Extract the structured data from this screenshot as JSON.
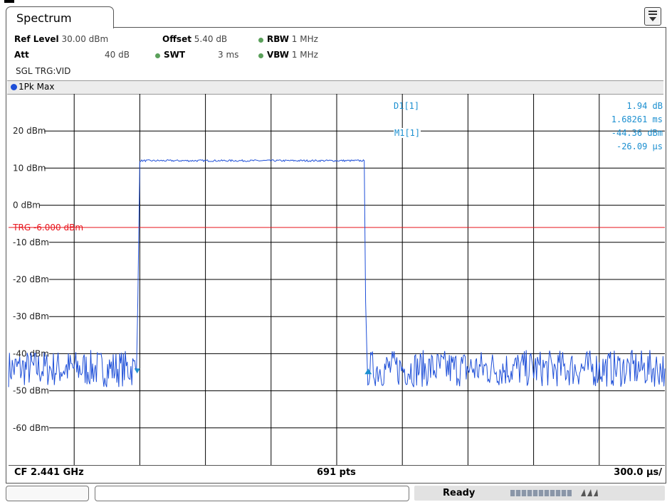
{
  "window": {
    "tab_title": "Spectrum"
  },
  "settings": {
    "ref_level_label": "Ref Level",
    "ref_level_value": "30.00 dBm",
    "offset_label": "Offset",
    "offset_value": "5.40 dB",
    "rbw_label": "RBW",
    "rbw_value": "1 MHz",
    "att_label": "Att",
    "att_value": "40 dB",
    "swt_label": "SWT",
    "swt_value": "3 ms",
    "vbw_label": "VBW",
    "vbw_value": "1 MHz",
    "mode": "SGL TRG:VID"
  },
  "trace": {
    "label": "1Pk Max",
    "color": "#1e4fd8"
  },
  "markers": {
    "d1_label": "D1[1]",
    "d1_level": "1.94 dB",
    "d1_time": "1.68261 ms",
    "m1_label": "M1[1]",
    "m1_level": "-44.36 dBm",
    "m1_time": "-26.09 µs",
    "color": "#1b8fd0"
  },
  "footer": {
    "center_freq": "CF 2.441 GHz",
    "points": "691 pts",
    "time_per_div": "300.0 µs/"
  },
  "status": {
    "ready": "Ready"
  },
  "chart_data": {
    "type": "line",
    "y_tick_labels": [
      "20 dBm",
      "10 dBm",
      "0 dBm",
      "-10 dBm",
      "-20 dBm",
      "-30 dBm",
      "-40 dBm",
      "-50 dBm",
      "-60 dBm"
    ],
    "ylim": [
      -70,
      30
    ],
    "x_divisions": 10,
    "trigger_line": {
      "label": "TRG -6.000 dBm",
      "value": -6,
      "color": "#e8141c"
    },
    "series": [
      {
        "x": [
          0.0,
          1.95,
          1.97,
          2.0,
          5.42,
          5.44,
          5.46,
          10.0
        ],
        "y": [
          -44,
          -44,
          -26,
          12,
          12,
          -26,
          -44,
          -44
        ]
      }
    ]
  }
}
